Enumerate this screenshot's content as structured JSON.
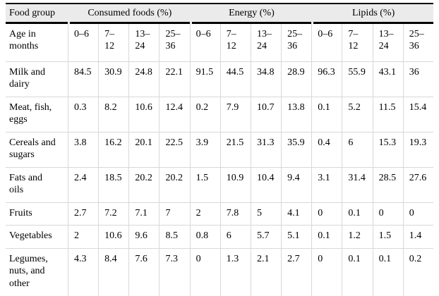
{
  "table": {
    "col_groups": [
      {
        "label": "Food group"
      },
      {
        "label": "Consumed foods (%)"
      },
      {
        "label": "Energy (%)"
      },
      {
        "label": "Lipids (%)"
      }
    ],
    "sub_header": {
      "label": "Age in\nmonths",
      "ages": [
        "0–6",
        "7–\n12",
        "13–\n24",
        "25–\n36",
        "0–6",
        "7–\n12",
        "13–\n24",
        "25–\n36",
        "0–6",
        "7–\n12",
        "13–\n24",
        "25–\n36"
      ]
    },
    "rows": [
      {
        "label": "Milk and\ndairy",
        "values": [
          "84.5",
          "30.9",
          "24.8",
          "22.1",
          "91.5",
          "44.5",
          "34.8",
          "28.9",
          "96.3",
          "55.9",
          "43.1",
          "36"
        ]
      },
      {
        "label": "Meat, fish,\neggs",
        "values": [
          "0.3",
          "8.2",
          "10.6",
          "12.4",
          "0.2",
          "7.9",
          "10.7",
          "13.8",
          "0.1",
          "5.2",
          "11.5",
          "15.4"
        ]
      },
      {
        "label": "Cereals and\nsugars",
        "values": [
          "3.8",
          "16.2",
          "20.1",
          "22.5",
          "3.9",
          "21.5",
          "31.3",
          "35.9",
          "0.4",
          "6",
          "15.3",
          "19.3"
        ]
      },
      {
        "label": "Fats and\noils",
        "values": [
          "2.4",
          "18.5",
          "20.2",
          "20.2",
          "1.5",
          "10.9",
          "10.4",
          "9.4",
          "3.1",
          "31.4",
          "28.5",
          "27.6"
        ]
      },
      {
        "label": "Fruits",
        "values": [
          "2.7",
          "7.2",
          "7.1",
          "7",
          "2",
          "7.8",
          "5",
          "4.1",
          "0",
          "0.1",
          "0",
          "0"
        ]
      },
      {
        "label": "Vegetables",
        "values": [
          "2",
          "10.6",
          "9.6",
          "8.5",
          "0.8",
          "6",
          "5.7",
          "5.1",
          "0.1",
          "1.2",
          "1.5",
          "1.4"
        ]
      },
      {
        "label": "Legumes,\nnuts, and\nother",
        "values": [
          "4.3",
          "8.4",
          "7.6",
          "7.3",
          "0",
          "1.3",
          "2.1",
          "2.7",
          "0",
          "0.1",
          "0.1",
          "0.2"
        ]
      }
    ],
    "colors": {
      "header_background": "#ebebeb",
      "grid_line": "#d8d8d8",
      "rule_line": "#000000"
    }
  }
}
